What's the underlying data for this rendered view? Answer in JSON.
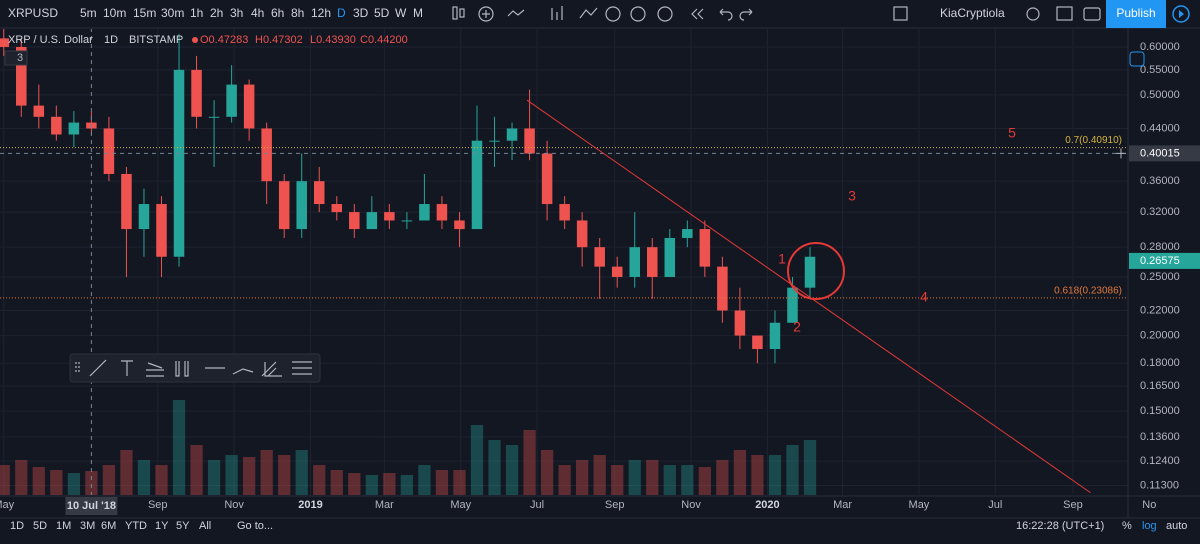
{
  "toolbar": {
    "symbol": "XRPUSD",
    "intervals": [
      "5m",
      "10m",
      "15m",
      "30m",
      "1h",
      "2h",
      "3h",
      "4h",
      "6h",
      "8h",
      "12h",
      "D",
      "3D",
      "5D",
      "W",
      "M"
    ],
    "active_interval": "D",
    "user": "KiaCryptiola",
    "publish": "Publish"
  },
  "legend": {
    "name": "XRP / U.S. Dollar",
    "interval": "1D",
    "exchange": "BITSTAMP",
    "ohlc": [
      "O0.47283",
      "H0.47302",
      "L0.43930",
      "C0.44200"
    ],
    "collapsed_count": "3"
  },
  "chart_data": {
    "type": "candlestick",
    "log_scale": true,
    "grid": true,
    "up_color": "#26a69a",
    "down_color": "#ef5350",
    "x": [
      "2018-05-01",
      "2018-05-15",
      "2018-05-29",
      "2018-06-12",
      "2018-06-26",
      "2018-07-10",
      "2018-07-24",
      "2018-08-07",
      "2018-08-21",
      "2018-09-04",
      "2018-09-18",
      "2018-10-02",
      "2018-10-16",
      "2018-10-30",
      "2018-11-13",
      "2018-11-27",
      "2018-12-11",
      "2018-12-25",
      "2019-01-08",
      "2019-01-22",
      "2019-02-05",
      "2019-02-19",
      "2019-03-05",
      "2019-03-19",
      "2019-04-02",
      "2019-04-16",
      "2019-04-30",
      "2019-05-14",
      "2019-05-28",
      "2019-06-11",
      "2019-06-25",
      "2019-07-09",
      "2019-07-23",
      "2019-08-06",
      "2019-08-20",
      "2019-09-03",
      "2019-09-17",
      "2019-10-01",
      "2019-10-15",
      "2019-10-29",
      "2019-11-12",
      "2019-11-26",
      "2019-12-10",
      "2019-12-24",
      "2020-01-07",
      "2020-01-21",
      "2020-02-04"
    ],
    "open": [
      0.62,
      0.6,
      0.48,
      0.46,
      0.43,
      0.45,
      0.44,
      0.37,
      0.3,
      0.33,
      0.27,
      0.55,
      0.46,
      0.46,
      0.52,
      0.44,
      0.36,
      0.3,
      0.36,
      0.33,
      0.32,
      0.3,
      0.32,
      0.31,
      0.31,
      0.33,
      0.31,
      0.3,
      0.42,
      0.42,
      0.44,
      0.4,
      0.33,
      0.31,
      0.28,
      0.26,
      0.25,
      0.28,
      0.25,
      0.29,
      0.3,
      0.26,
      0.22,
      0.2,
      0.19,
      0.21,
      0.24
    ],
    "high": [
      0.66,
      0.62,
      0.52,
      0.48,
      0.47,
      0.47,
      0.46,
      0.38,
      0.35,
      0.34,
      0.63,
      0.58,
      0.49,
      0.56,
      0.53,
      0.45,
      0.37,
      0.4,
      0.38,
      0.34,
      0.33,
      0.34,
      0.33,
      0.32,
      0.37,
      0.34,
      0.32,
      0.48,
      0.46,
      0.45,
      0.51,
      0.42,
      0.34,
      0.32,
      0.29,
      0.27,
      0.32,
      0.29,
      0.3,
      0.31,
      0.31,
      0.27,
      0.24,
      0.2,
      0.22,
      0.25,
      0.28
    ],
    "low": [
      0.58,
      0.46,
      0.44,
      0.42,
      0.41,
      0.43,
      0.36,
      0.25,
      0.27,
      0.25,
      0.26,
      0.44,
      0.38,
      0.45,
      0.42,
      0.33,
      0.29,
      0.29,
      0.32,
      0.31,
      0.29,
      0.3,
      0.3,
      0.3,
      0.31,
      0.3,
      0.28,
      0.3,
      0.38,
      0.39,
      0.39,
      0.31,
      0.3,
      0.26,
      0.23,
      0.24,
      0.24,
      0.23,
      0.25,
      0.28,
      0.25,
      0.21,
      0.19,
      0.18,
      0.18,
      0.21,
      0.23
    ],
    "close": [
      0.6,
      0.48,
      0.46,
      0.43,
      0.45,
      0.44,
      0.37,
      0.3,
      0.33,
      0.27,
      0.55,
      0.46,
      0.46,
      0.52,
      0.44,
      0.36,
      0.3,
      0.36,
      0.33,
      0.32,
      0.3,
      0.32,
      0.31,
      0.31,
      0.33,
      0.31,
      0.3,
      0.42,
      0.42,
      0.44,
      0.4,
      0.33,
      0.31,
      0.28,
      0.26,
      0.25,
      0.28,
      0.25,
      0.29,
      0.3,
      0.26,
      0.22,
      0.2,
      0.19,
      0.21,
      0.24,
      0.27
    ],
    "volume": [
      30,
      35,
      28,
      25,
      22,
      24,
      30,
      45,
      35,
      30,
      95,
      50,
      35,
      40,
      38,
      45,
      40,
      45,
      30,
      25,
      22,
      20,
      22,
      20,
      30,
      25,
      25,
      70,
      55,
      50,
      65,
      45,
      30,
      35,
      40,
      30,
      35,
      35,
      30,
      30,
      28,
      35,
      45,
      40,
      40,
      50,
      55
    ],
    "xlim": [
      "2018-04-28",
      "2020-10-15"
    ],
    "ylim": [
      0.109,
      0.645
    ],
    "yticks": [
      {
        "value": 0.6,
        "label": "0.60000"
      },
      {
        "value": 0.55,
        "label": "0.55000"
      },
      {
        "value": 0.5,
        "label": "0.50000"
      },
      {
        "value": 0.44,
        "label": "0.44000"
      },
      {
        "value": 0.36,
        "label": "0.36000"
      },
      {
        "value": 0.32,
        "label": "0.32000"
      },
      {
        "value": 0.28,
        "label": "0.28000"
      },
      {
        "value": 0.25,
        "label": "0.25000"
      },
      {
        "value": 0.22,
        "label": "0.22000"
      },
      {
        "value": 0.2,
        "label": "0.20000"
      },
      {
        "value": 0.18,
        "label": "0.18000"
      },
      {
        "value": 0.165,
        "label": "0.16500"
      },
      {
        "value": 0.15,
        "label": "0.15000"
      },
      {
        "value": 0.136,
        "label": "0.13600"
      },
      {
        "value": 0.124,
        "label": "0.12400"
      },
      {
        "value": 0.113,
        "label": "0.11300"
      }
    ],
    "xticks": [
      {
        "value": "2018-05-01",
        "label": "May"
      },
      {
        "value": "2018-09-01",
        "label": "Sep"
      },
      {
        "value": "2018-11-01",
        "label": "Nov"
      },
      {
        "value": "2019-01-01",
        "label": "2019"
      },
      {
        "value": "2019-03-01",
        "label": "Mar"
      },
      {
        "value": "2019-05-01",
        "label": "May"
      },
      {
        "value": "2019-07-01",
        "label": "Jul"
      },
      {
        "value": "2019-09-01",
        "label": "Sep"
      },
      {
        "value": "2019-11-01",
        "label": "Nov"
      },
      {
        "value": "2020-01-01",
        "label": "2020"
      },
      {
        "value": "2020-03-01",
        "label": "Mar"
      },
      {
        "value": "2020-05-01",
        "label": "May"
      },
      {
        "value": "2020-07-01",
        "label": "Jul"
      },
      {
        "value": "2020-09-01",
        "label": "Sep"
      },
      {
        "value": "2020-11-01",
        "label": "No"
      }
    ],
    "current_price": 0.26575,
    "crosshair": {
      "x": "2018-07-10",
      "x_label": "10 Jul '18",
      "y": 0.40015
    },
    "fib_levels": [
      {
        "label": "0.7(0.40910)",
        "value": 0.4091,
        "color": "#d4b43a"
      },
      {
        "label": "0.618(0.23086)",
        "value": 0.23086,
        "color": "#e0793a"
      }
    ],
    "trendline": {
      "start_x": "2019-06-23",
      "start_y": 0.49,
      "end_x": "2020-09-15",
      "end_y": 0.11,
      "color": "#e53935"
    },
    "annotations": [
      "1",
      "2",
      "3",
      "4",
      "5"
    ]
  },
  "bottom_bar": {
    "ranges": [
      "1D",
      "5D",
      "1M",
      "3M",
      "6M",
      "YTD",
      "1Y",
      "5Y",
      "All"
    ],
    "goto": "Go to...",
    "clock": "16:22:28 (UTC+1)",
    "toggles": [
      "%",
      "log",
      "auto"
    ]
  }
}
